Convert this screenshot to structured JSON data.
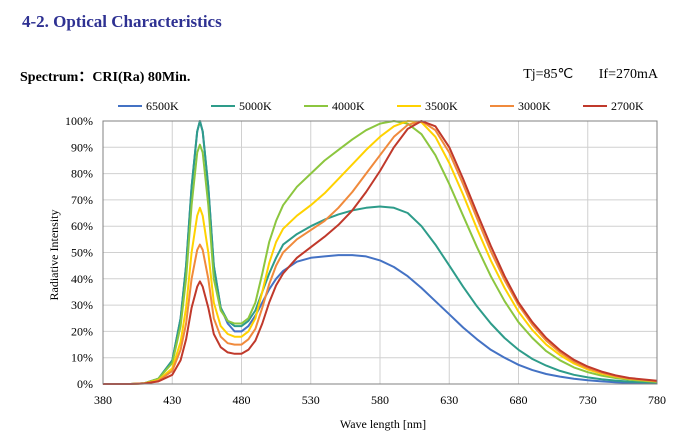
{
  "header": {
    "section_title": "4-2. Optical Characteristics",
    "spectrum_label": "Spectrum：CRI(Ra) 80Min.",
    "tj": "Tj=85℃",
    "if": "If=270mA"
  },
  "chart_data": {
    "type": "line",
    "title": "",
    "xlabel": "Wave length [nm]",
    "ylabel": "Radiative Intensity",
    "xlim": [
      380,
      780
    ],
    "ylim": [
      0,
      100
    ],
    "x_ticks": [
      380,
      430,
      480,
      530,
      580,
      630,
      680,
      730,
      780
    ],
    "y_ticks": [
      0,
      10,
      20,
      30,
      40,
      50,
      60,
      70,
      80,
      90,
      100
    ],
    "y_tick_labels": [
      "0%",
      "10%",
      "20%",
      "30%",
      "40%",
      "50%",
      "60%",
      "70%",
      "80%",
      "90%",
      "100%"
    ],
    "grid": true,
    "legend_position": "top",
    "series": [
      {
        "name": "6500K",
        "color": "#4472c4",
        "points": [
          [
            380,
            0
          ],
          [
            400,
            0
          ],
          [
            410,
            0.3
          ],
          [
            420,
            2
          ],
          [
            430,
            9
          ],
          [
            436,
            25
          ],
          [
            440,
            45
          ],
          [
            444,
            75
          ],
          [
            448,
            96
          ],
          [
            450,
            100
          ],
          [
            452,
            96
          ],
          [
            456,
            75
          ],
          [
            460,
            45
          ],
          [
            465,
            29
          ],
          [
            470,
            23
          ],
          [
            475,
            20
          ],
          [
            480,
            20
          ],
          [
            485,
            22
          ],
          [
            490,
            26
          ],
          [
            495,
            31
          ],
          [
            500,
            36
          ],
          [
            505,
            40
          ],
          [
            510,
            43
          ],
          [
            520,
            46.5
          ],
          [
            530,
            48
          ],
          [
            540,
            48.5
          ],
          [
            550,
            49
          ],
          [
            560,
            49
          ],
          [
            570,
            48.5
          ],
          [
            580,
            47
          ],
          [
            590,
            44.5
          ],
          [
            600,
            41
          ],
          [
            610,
            36.5
          ],
          [
            620,
            31.5
          ],
          [
            630,
            26.5
          ],
          [
            640,
            21.5
          ],
          [
            650,
            17
          ],
          [
            660,
            13
          ],
          [
            670,
            10
          ],
          [
            680,
            7.3
          ],
          [
            690,
            5.3
          ],
          [
            700,
            3.8
          ],
          [
            710,
            2.8
          ],
          [
            720,
            2
          ],
          [
            730,
            1.4
          ],
          [
            740,
            1
          ],
          [
            750,
            0.7
          ],
          [
            760,
            0.5
          ],
          [
            780,
            0.3
          ]
        ]
      },
      {
        "name": "5000K",
        "color": "#2e9c8a",
        "points": [
          [
            380,
            0
          ],
          [
            400,
            0
          ],
          [
            410,
            0.3
          ],
          [
            420,
            2
          ],
          [
            430,
            9
          ],
          [
            436,
            25
          ],
          [
            440,
            45
          ],
          [
            444,
            75
          ],
          [
            448,
            96
          ],
          [
            450,
            100
          ],
          [
            452,
            96
          ],
          [
            456,
            75
          ],
          [
            460,
            45
          ],
          [
            465,
            29
          ],
          [
            470,
            24
          ],
          [
            475,
            22
          ],
          [
            480,
            22
          ],
          [
            485,
            24
          ],
          [
            490,
            28
          ],
          [
            495,
            35
          ],
          [
            500,
            42
          ],
          [
            505,
            48
          ],
          [
            510,
            53
          ],
          [
            520,
            57
          ],
          [
            530,
            60
          ],
          [
            540,
            62.5
          ],
          [
            550,
            64.5
          ],
          [
            560,
            66
          ],
          [
            570,
            67
          ],
          [
            580,
            67.5
          ],
          [
            590,
            67
          ],
          [
            600,
            65
          ],
          [
            610,
            60
          ],
          [
            620,
            53
          ],
          [
            630,
            45
          ],
          [
            640,
            37
          ],
          [
            650,
            29.5
          ],
          [
            660,
            23
          ],
          [
            670,
            17.5
          ],
          [
            680,
            13
          ],
          [
            690,
            9.5
          ],
          [
            700,
            7
          ],
          [
            710,
            5
          ],
          [
            720,
            3.5
          ],
          [
            730,
            2.5
          ],
          [
            740,
            1.8
          ],
          [
            750,
            1.3
          ],
          [
            760,
            0.9
          ],
          [
            780,
            0.5
          ]
        ]
      },
      {
        "name": "4000K",
        "color": "#8cc63f",
        "points": [
          [
            380,
            0
          ],
          [
            400,
            0
          ],
          [
            410,
            0.3
          ],
          [
            420,
            2
          ],
          [
            430,
            8
          ],
          [
            436,
            22
          ],
          [
            440,
            40
          ],
          [
            444,
            68
          ],
          [
            448,
            88
          ],
          [
            450,
            91
          ],
          [
            452,
            88
          ],
          [
            456,
            68
          ],
          [
            460,
            40
          ],
          [
            465,
            28
          ],
          [
            470,
            24
          ],
          [
            475,
            23
          ],
          [
            480,
            23
          ],
          [
            485,
            25
          ],
          [
            490,
            31
          ],
          [
            495,
            42
          ],
          [
            500,
            54
          ],
          [
            505,
            62
          ],
          [
            510,
            68
          ],
          [
            520,
            75
          ],
          [
            530,
            80
          ],
          [
            540,
            85
          ],
          [
            550,
            89
          ],
          [
            560,
            93
          ],
          [
            570,
            96.5
          ],
          [
            580,
            99
          ],
          [
            590,
            100
          ],
          [
            600,
            99
          ],
          [
            610,
            95
          ],
          [
            620,
            87
          ],
          [
            630,
            76
          ],
          [
            640,
            64
          ],
          [
            650,
            52
          ],
          [
            660,
            41
          ],
          [
            670,
            31.5
          ],
          [
            680,
            23.5
          ],
          [
            690,
            17.5
          ],
          [
            700,
            12.5
          ],
          [
            710,
            9
          ],
          [
            720,
            6.3
          ],
          [
            730,
            4.5
          ],
          [
            740,
            3.2
          ],
          [
            750,
            2.3
          ],
          [
            760,
            1.6
          ],
          [
            780,
            0.8
          ]
        ]
      },
      {
        "name": "3500K",
        "color": "#ffd200",
        "points": [
          [
            380,
            0
          ],
          [
            400,
            0
          ],
          [
            410,
            0.3
          ],
          [
            420,
            1.5
          ],
          [
            430,
            6
          ],
          [
            436,
            16
          ],
          [
            440,
            29
          ],
          [
            444,
            50
          ],
          [
            448,
            64
          ],
          [
            450,
            67
          ],
          [
            452,
            64
          ],
          [
            456,
            50
          ],
          [
            460,
            31
          ],
          [
            465,
            22
          ],
          [
            470,
            19
          ],
          [
            475,
            18
          ],
          [
            480,
            18
          ],
          [
            485,
            20
          ],
          [
            490,
            25
          ],
          [
            495,
            35
          ],
          [
            500,
            46
          ],
          [
            505,
            54
          ],
          [
            510,
            59
          ],
          [
            520,
            64
          ],
          [
            530,
            68
          ],
          [
            540,
            72.5
          ],
          [
            550,
            78
          ],
          [
            560,
            83.5
          ],
          [
            570,
            89
          ],
          [
            580,
            94
          ],
          [
            590,
            98
          ],
          [
            600,
            100
          ],
          [
            610,
            99.5
          ],
          [
            620,
            94
          ],
          [
            630,
            84
          ],
          [
            640,
            72
          ],
          [
            650,
            59
          ],
          [
            660,
            47
          ],
          [
            670,
            36.5
          ],
          [
            680,
            27.5
          ],
          [
            690,
            20.5
          ],
          [
            700,
            15
          ],
          [
            710,
            11
          ],
          [
            720,
            7.8
          ],
          [
            730,
            5.5
          ],
          [
            740,
            3.9
          ],
          [
            750,
            2.8
          ],
          [
            760,
            2
          ],
          [
            780,
            1
          ]
        ]
      },
      {
        "name": "3000K",
        "color": "#f08a3c",
        "points": [
          [
            380,
            0
          ],
          [
            400,
            0
          ],
          [
            410,
            0.2
          ],
          [
            420,
            1.2
          ],
          [
            430,
            5
          ],
          [
            436,
            13
          ],
          [
            440,
            23
          ],
          [
            444,
            40
          ],
          [
            448,
            51
          ],
          [
            450,
            53
          ],
          [
            452,
            51
          ],
          [
            456,
            40
          ],
          [
            460,
            25
          ],
          [
            465,
            18
          ],
          [
            470,
            15.5
          ],
          [
            475,
            15
          ],
          [
            480,
            15
          ],
          [
            485,
            17
          ],
          [
            490,
            21
          ],
          [
            495,
            29
          ],
          [
            500,
            38
          ],
          [
            505,
            45
          ],
          [
            510,
            50
          ],
          [
            520,
            55
          ],
          [
            530,
            58.5
          ],
          [
            540,
            62
          ],
          [
            550,
            67
          ],
          [
            560,
            73
          ],
          [
            570,
            80
          ],
          [
            580,
            87
          ],
          [
            590,
            94
          ],
          [
            600,
            98.5
          ],
          [
            610,
            100
          ],
          [
            620,
            96.5
          ],
          [
            630,
            88
          ],
          [
            640,
            76
          ],
          [
            650,
            63
          ],
          [
            660,
            50.5
          ],
          [
            670,
            39.5
          ],
          [
            680,
            30
          ],
          [
            690,
            22.5
          ],
          [
            700,
            16.5
          ],
          [
            710,
            12
          ],
          [
            720,
            8.5
          ],
          [
            730,
            6
          ],
          [
            740,
            4.3
          ],
          [
            750,
            3
          ],
          [
            760,
            2.1
          ],
          [
            780,
            1.1
          ]
        ]
      },
      {
        "name": "2700K",
        "color": "#c0392b",
        "points": [
          [
            380,
            0
          ],
          [
            400,
            0
          ],
          [
            410,
            0.2
          ],
          [
            420,
            1
          ],
          [
            430,
            3.5
          ],
          [
            436,
            9
          ],
          [
            440,
            17
          ],
          [
            444,
            29
          ],
          [
            448,
            37
          ],
          [
            450,
            39
          ],
          [
            452,
            37
          ],
          [
            456,
            29
          ],
          [
            460,
            19
          ],
          [
            465,
            14
          ],
          [
            470,
            12
          ],
          [
            475,
            11.5
          ],
          [
            480,
            11.5
          ],
          [
            485,
            13
          ],
          [
            490,
            16.5
          ],
          [
            495,
            23
          ],
          [
            500,
            31
          ],
          [
            505,
            37.5
          ],
          [
            510,
            42
          ],
          [
            520,
            48
          ],
          [
            530,
            52
          ],
          [
            540,
            56
          ],
          [
            550,
            60.5
          ],
          [
            560,
            66
          ],
          [
            570,
            73
          ],
          [
            580,
            81
          ],
          [
            590,
            90
          ],
          [
            600,
            97
          ],
          [
            610,
            100
          ],
          [
            620,
            98
          ],
          [
            630,
            90
          ],
          [
            640,
            78
          ],
          [
            650,
            65
          ],
          [
            660,
            52.5
          ],
          [
            670,
            41
          ],
          [
            680,
            31
          ],
          [
            690,
            23.5
          ],
          [
            700,
            17.5
          ],
          [
            710,
            12.8
          ],
          [
            720,
            9.2
          ],
          [
            730,
            6.6
          ],
          [
            740,
            4.7
          ],
          [
            750,
            3.3
          ],
          [
            760,
            2.3
          ],
          [
            780,
            1.2
          ]
        ]
      }
    ]
  }
}
